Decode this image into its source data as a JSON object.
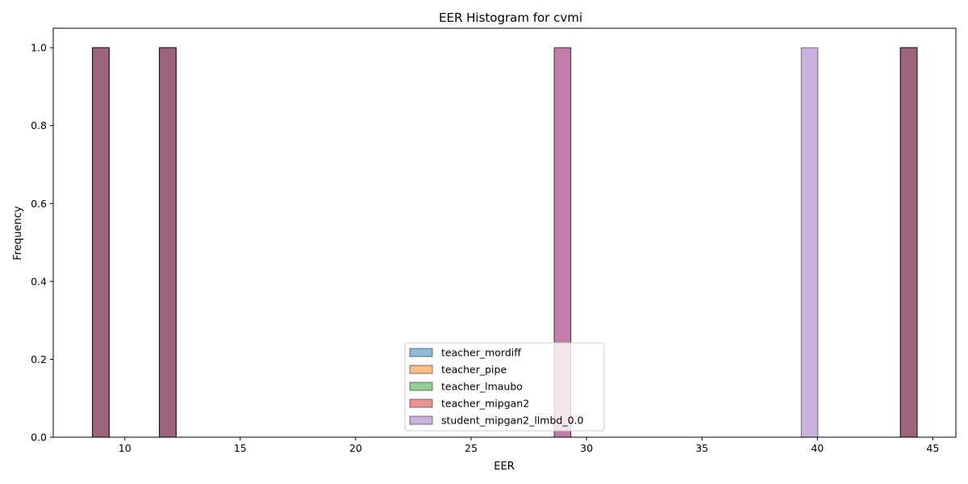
{
  "chart_data": {
    "type": "bar",
    "title": "EER Histogram for cvmi",
    "xlabel": "EER",
    "ylabel": "Frequency",
    "xlim": [
      6.9,
      46.0
    ],
    "ylim": [
      0.0,
      1.05
    ],
    "xticks": [
      10,
      15,
      20,
      25,
      30,
      35,
      40,
      45
    ],
    "yticks": [
      0.0,
      0.2,
      0.4,
      0.6,
      0.8,
      1.0
    ],
    "legend_position": "lower-center",
    "bin_width": 0.72,
    "series": [
      {
        "name": "teacher_mordiff",
        "color": "#1f77b4",
        "bins": [
          {
            "x": 8.6,
            "count": 1
          },
          {
            "x": 11.5,
            "count": 1
          },
          {
            "x": 43.6,
            "count": 1
          }
        ]
      },
      {
        "name": "teacher_pipe",
        "color": "#ff7f0e",
        "bins": [
          {
            "x": 8.6,
            "count": 1
          },
          {
            "x": 11.5,
            "count": 1
          },
          {
            "x": 43.6,
            "count": 1
          }
        ]
      },
      {
        "name": "teacher_lmaubo",
        "color": "#2ca02c",
        "bins": [
          {
            "x": 8.6,
            "count": 1
          },
          {
            "x": 11.5,
            "count": 1
          },
          {
            "x": 43.6,
            "count": 1
          }
        ]
      },
      {
        "name": "teacher_mipgan2",
        "color": "#d62728",
        "bins": [
          {
            "x": 8.6,
            "count": 1
          },
          {
            "x": 11.5,
            "count": 1
          },
          {
            "x": 28.6,
            "count": 1
          },
          {
            "x": 43.6,
            "count": 1
          }
        ]
      },
      {
        "name": "student_mipgan2_llmbd_0.0",
        "color": "#9467bd",
        "bins": [
          {
            "x": 8.6,
            "count": 1
          },
          {
            "x": 11.5,
            "count": 1
          },
          {
            "x": 28.6,
            "count": 1
          },
          {
            "x": 39.3,
            "count": 1
          },
          {
            "x": 43.6,
            "count": 1
          }
        ]
      }
    ]
  }
}
